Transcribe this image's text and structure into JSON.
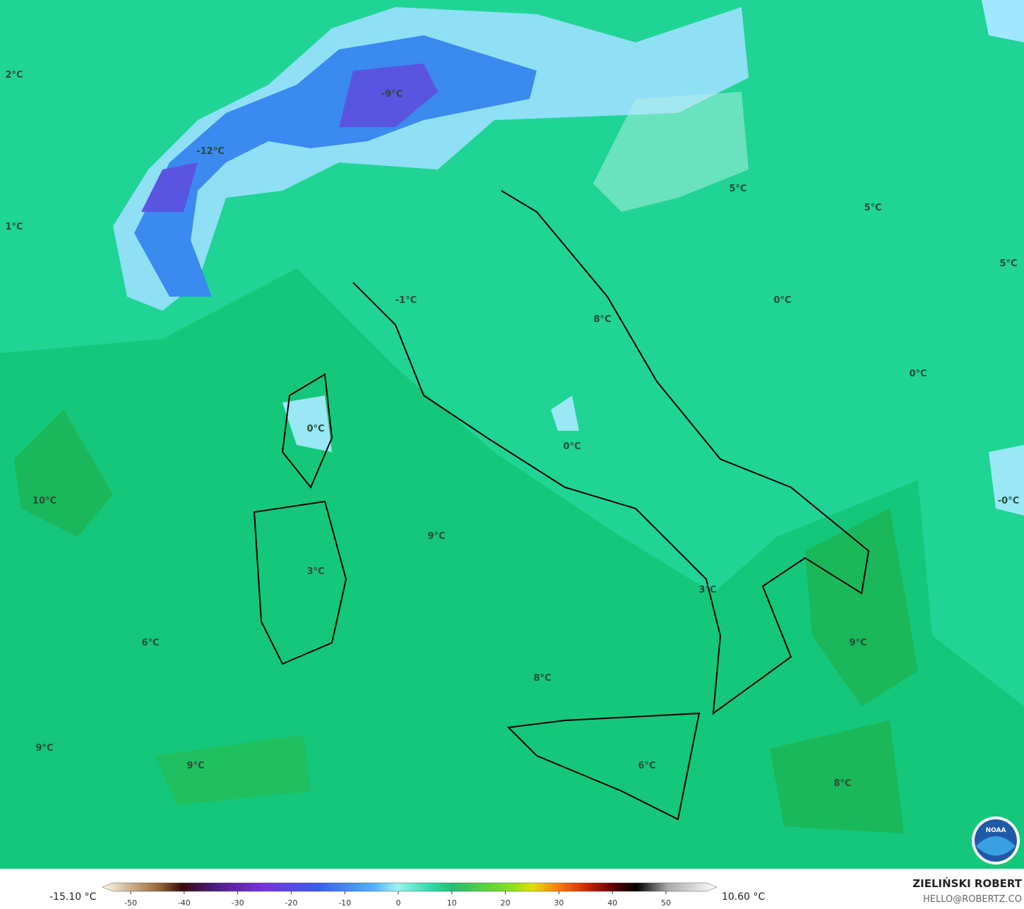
{
  "map": {
    "labels": [
      "2°C",
      "-9°C",
      "-12°C",
      "1°C",
      "5°C",
      "5°C",
      "5°C",
      "-1°C",
      "0°C",
      "8°C",
      "0°C",
      "0°C",
      "0°C",
      "10°C",
      "-0°C",
      "9°C",
      "3°C",
      "3°C",
      "6°C",
      "9°C",
      "8°C",
      "9°C",
      "9°C",
      "6°C",
      "8°C"
    ],
    "logo_text": "NOAA"
  },
  "legend": {
    "min_label": "-15.10 °C",
    "max_label": "10.60 °C",
    "ticks": [
      -50,
      -40,
      -30,
      -20,
      -10,
      0,
      10,
      20,
      30,
      40,
      50
    ]
  },
  "credit": {
    "name": "ZIELIŃSKI ROBERT",
    "email": "HELLO@ROBERTZ.CO"
  }
}
